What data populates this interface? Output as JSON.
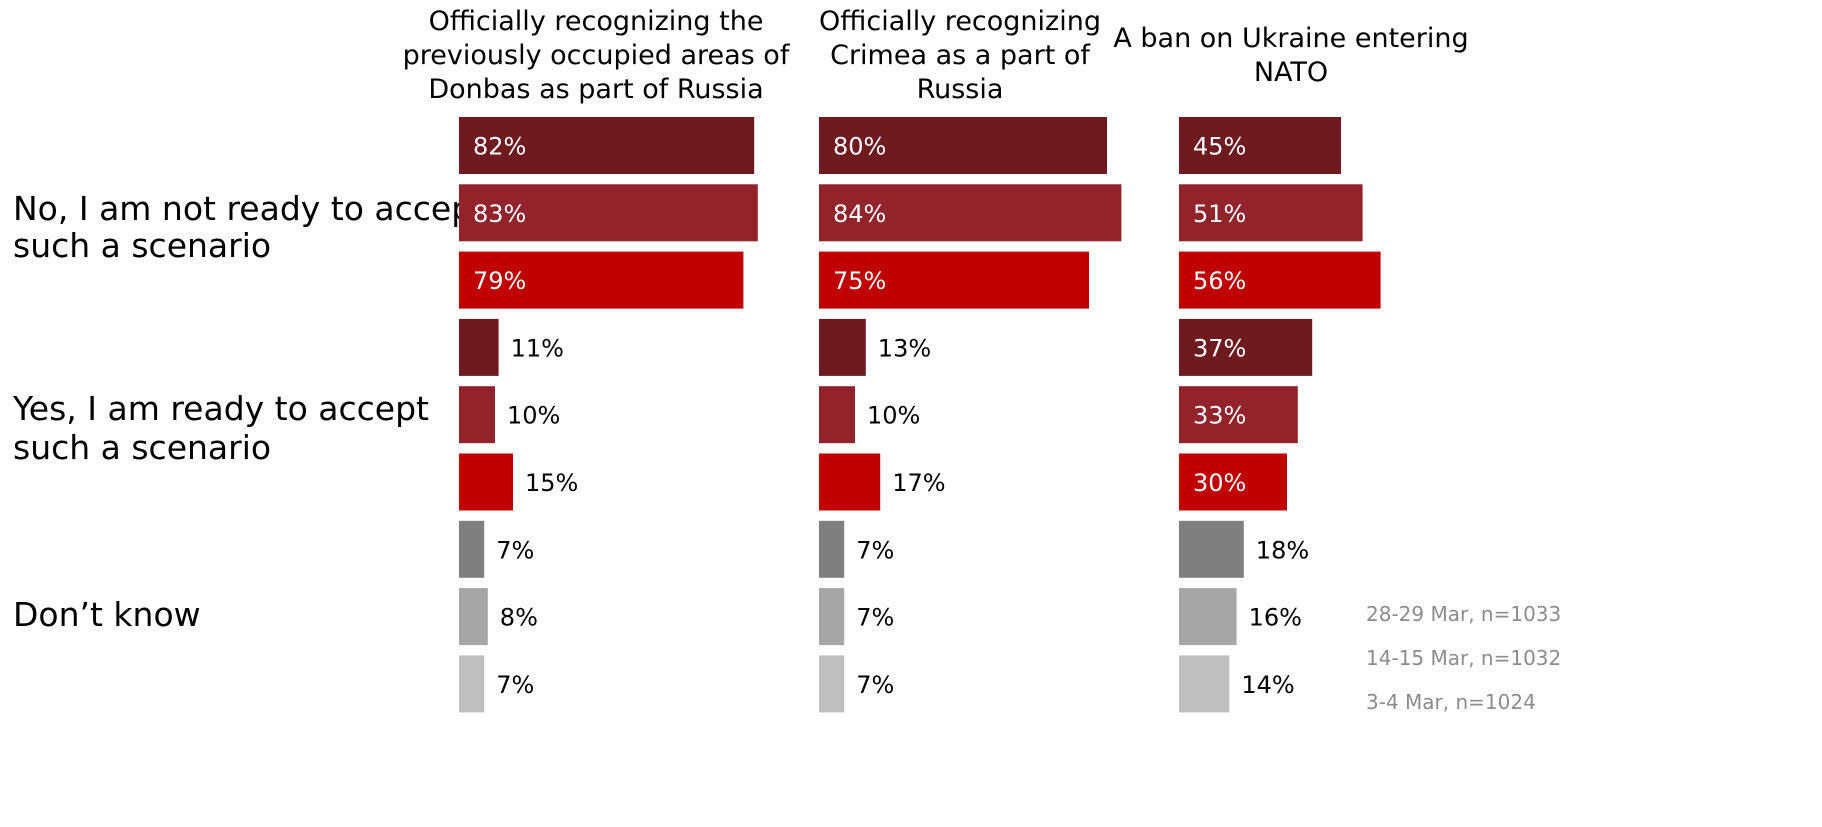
{
  "chart_data": {
    "type": "bar",
    "orientation": "horizontal",
    "unit": "%",
    "columns": [
      {
        "title": [
          "Officially recognizing the",
          "previously occupied areas of",
          "Donbas as part of Russia"
        ]
      },
      {
        "title": [
          "Officially recognizing",
          "Crimea as a part of",
          "Russia"
        ]
      },
      {
        "title": [
          "A ban on Ukraine entering",
          "NATO"
        ]
      }
    ],
    "row_groups": [
      {
        "label": [
          "No, I am not ready to accept",
          "such a scenario"
        ]
      },
      {
        "label": [
          "Yes, I am ready to accept",
          "such a scenario"
        ]
      },
      {
        "label": [
          "Don’t know"
        ]
      }
    ],
    "series": [
      {
        "name": "28-29 Mar, n=1033"
      },
      {
        "name": "14-15 Mar, n=1032"
      },
      {
        "name": "3-4 Mar, n=1024"
      }
    ],
    "values": [
      [
        [
          82,
          83,
          79
        ],
        [
          11,
          10,
          15
        ],
        [
          7,
          8,
          7
        ]
      ],
      [
        [
          80,
          84,
          75
        ],
        [
          13,
          10,
          17
        ],
        [
          7,
          7,
          7
        ]
      ],
      [
        [
          45,
          51,
          56
        ],
        [
          37,
          33,
          30
        ],
        [
          18,
          16,
          14
        ]
      ]
    ],
    "colors": {
      "no": [
        "#6e1a1f",
        "#92232a",
        "#c00000"
      ],
      "yes": [
        "#6e1a1f",
        "#92232a",
        "#c00000"
      ],
      "dont_know": [
        "#7f7f7f",
        "#a6a6a6",
        "#bfbfbf"
      ]
    },
    "legend_position": "bottom-right"
  }
}
